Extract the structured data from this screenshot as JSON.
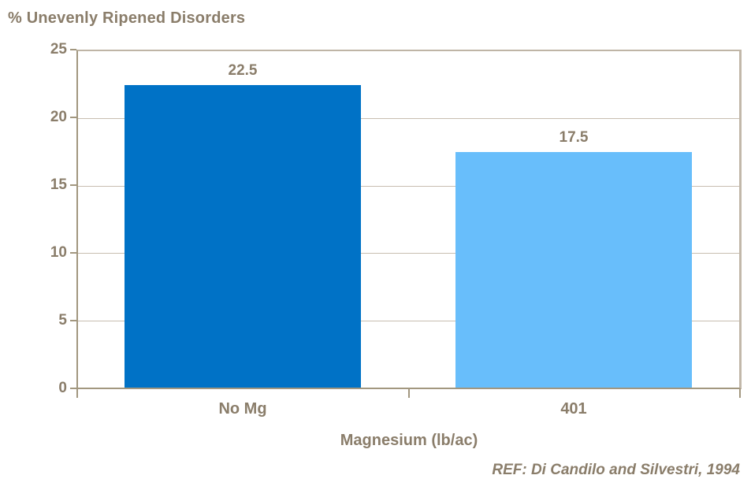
{
  "colors": {
    "text": "#8a7d6a",
    "bar_no_mg": "#0072c6",
    "bar_401": "#68befb",
    "gridline": "#c8beb1",
    "axis": "#a2977f"
  },
  "chart_data": {
    "type": "bar",
    "title": "% Unevenly Ripened Disorders",
    "categories": [
      "No Mg",
      "401"
    ],
    "values": [
      22.5,
      17.5
    ],
    "data_labels": [
      "22.5",
      "17.5"
    ],
    "bar_colors": [
      "#0072c6",
      "#68befb"
    ],
    "xlabel": "Magnesium (lb/ac)",
    "ylabel": "",
    "ylim": [
      0,
      25
    ],
    "yticks": [
      0,
      5,
      10,
      15,
      20,
      25
    ],
    "grid": true,
    "legend_position": "none"
  },
  "footer": {
    "ref": "REF: Di Candilo and Silvestri, 1994"
  }
}
